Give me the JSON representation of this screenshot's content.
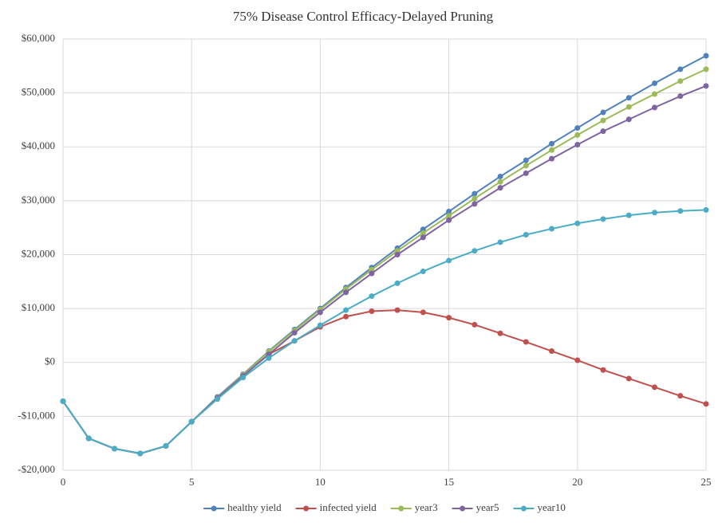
{
  "chart_data": {
    "type": "line",
    "title": "75% Disease Control Efficacy-Delayed  Pruning",
    "x": [
      0,
      1,
      2,
      3,
      4,
      5,
      6,
      7,
      8,
      9,
      10,
      11,
      12,
      13,
      14,
      15,
      16,
      17,
      18,
      19,
      20,
      21,
      22,
      23,
      24,
      25
    ],
    "xlim": [
      0,
      25
    ],
    "xticks": [
      0,
      5,
      10,
      15,
      20,
      25
    ],
    "ylim": [
      -20000,
      60000
    ],
    "yticks": [
      {
        "value": -20000,
        "label": "-$20,000"
      },
      {
        "value": -10000,
        "label": "-$10,000"
      },
      {
        "value": 0,
        "label": "$0"
      },
      {
        "value": 10000,
        "label": "$10,000"
      },
      {
        "value": 20000,
        "label": "$20,000"
      },
      {
        "value": 30000,
        "label": "$30,000"
      },
      {
        "value": 40000,
        "label": "$40,000"
      },
      {
        "value": 50000,
        "label": "$50,000"
      },
      {
        "value": 60000,
        "label": "$60,000"
      }
    ],
    "grid": true,
    "legend": "bottom",
    "series": [
      {
        "name": "healthy yield",
        "color": "#4f81bd",
        "values": [
          -7200,
          -14100,
          -16000,
          -16900,
          -15500,
          -11000,
          -6400,
          -2200,
          2100,
          6100,
          10000,
          13900,
          17600,
          21200,
          24700,
          28000,
          31300,
          34500,
          37500,
          40600,
          43500,
          46400,
          49100,
          51800,
          54400,
          56900
        ]
      },
      {
        "name": "infected yield",
        "color": "#c0504d",
        "values": [
          -7200,
          -14100,
          -16000,
          -16900,
          -15500,
          -11000,
          -6600,
          -2500,
          1500,
          4000,
          6600,
          8500,
          9500,
          9700,
          9300,
          8300,
          7000,
          5400,
          3800,
          2100,
          400,
          -1400,
          -3000,
          -4600,
          -6200,
          -7700
        ]
      },
      {
        "name": "year3",
        "color": "#9bbb59",
        "values": [
          -7200,
          -14100,
          -16000,
          -16900,
          -15500,
          -11000,
          -6500,
          -2300,
          2000,
          5900,
          9800,
          13600,
          17200,
          20700,
          24000,
          27200,
          30400,
          33500,
          36500,
          39400,
          42200,
          44900,
          47400,
          49800,
          52200,
          54400
        ]
      },
      {
        "name": "year5",
        "color": "#8064a2",
        "values": [
          -7200,
          -14100,
          -16000,
          -16900,
          -15500,
          -11000,
          -6600,
          -2500,
          1500,
          5500,
          9300,
          13000,
          16500,
          20000,
          23200,
          26400,
          29400,
          32400,
          35100,
          37800,
          40400,
          42900,
          45100,
          47300,
          49400,
          51300
        ]
      },
      {
        "name": "year10",
        "color": "#4bacc6",
        "values": [
          -7200,
          -14100,
          -16000,
          -16900,
          -15500,
          -11000,
          -6800,
          -2800,
          800,
          4000,
          6900,
          9700,
          12300,
          14700,
          16900,
          18900,
          20700,
          22300,
          23700,
          24800,
          25800,
          26600,
          27300,
          27800,
          28100,
          28300
        ]
      }
    ]
  }
}
